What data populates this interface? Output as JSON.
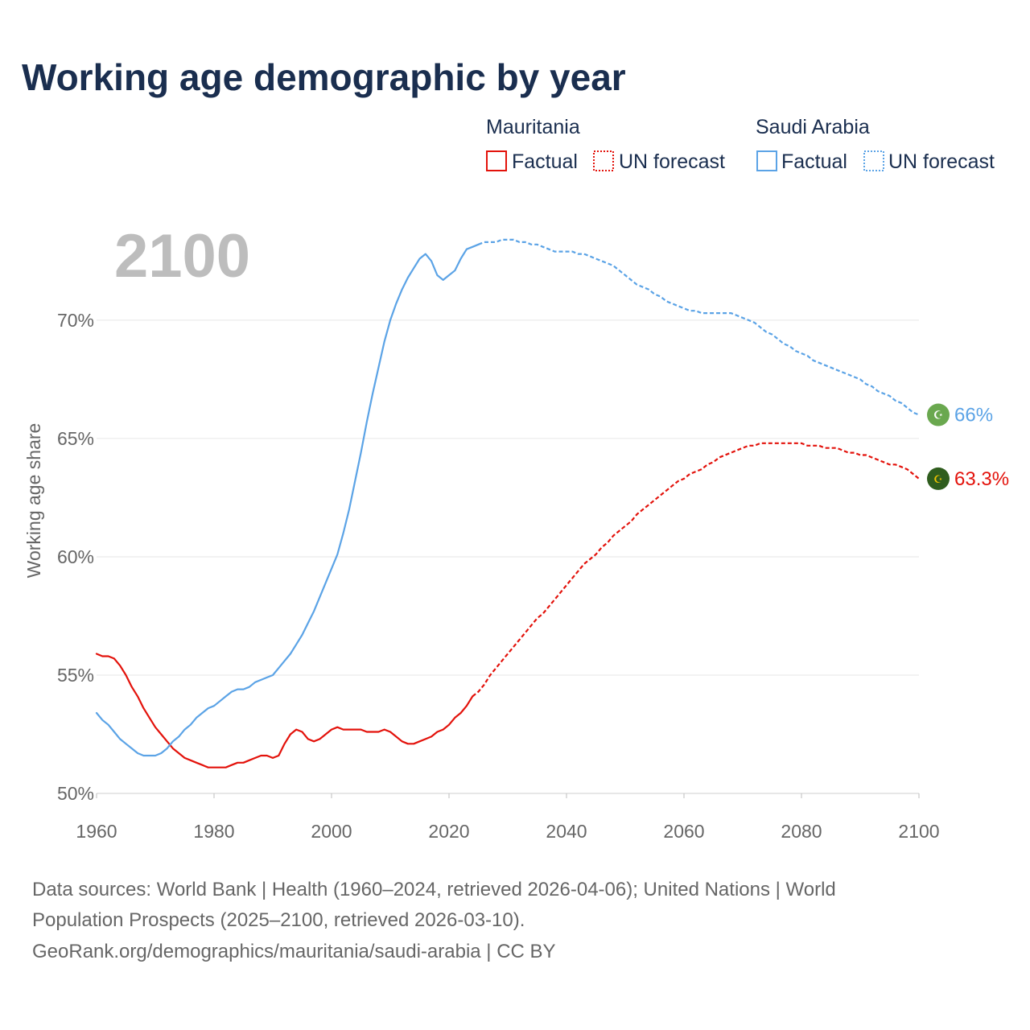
{
  "title": "Working age demographic by year",
  "year_watermark": "2100",
  "legend": {
    "groups": [
      {
        "name": "Mauritania",
        "color": "#e3120b",
        "items": [
          {
            "label": "Factual",
            "style": "solid"
          },
          {
            "label": "UN forecast",
            "style": "dotted"
          }
        ]
      },
      {
        "name": "Saudi Arabia",
        "color": "#5ba3e6",
        "items": [
          {
            "label": "Factual",
            "style": "solid"
          },
          {
            "label": "UN forecast",
            "style": "dotted"
          }
        ]
      }
    ]
  },
  "end_labels": [
    {
      "series": "Saudi Arabia",
      "text": "66%",
      "flag_icon": "saudi-arabia-flag-icon",
      "flag_color": "#6aa84f",
      "color": "#5ba3e6"
    },
    {
      "series": "Mauritania",
      "text": "63.3%",
      "flag_icon": "mauritania-flag-icon",
      "flag_color": "#2f5d1e",
      "color": "#e3120b"
    }
  ],
  "footer": {
    "line1": "Data sources: World Bank | Health (1960–2024, retrieved 2026-04-06); United Nations | World",
    "line2": "Population Prospects (2025–2100, retrieved 2026-03-10).",
    "line3": "GeoRank.org/demographics/mauritania/saudi-arabia | CC BY"
  },
  "chart_data": {
    "type": "line",
    "title": "Working age demographic by year",
    "xlabel": "",
    "ylabel": "Working age share",
    "xlim": [
      1960,
      2100
    ],
    "ylim": [
      50,
      73.5
    ],
    "x_ticks": [
      1960,
      1980,
      2000,
      2020,
      2040,
      2060,
      2080,
      2100
    ],
    "x_tick_labels": [
      "1960",
      "1980",
      "2000",
      "2020",
      "2040",
      "2060",
      "2080",
      "2100"
    ],
    "y_ticks": [
      50,
      55,
      60,
      65,
      70
    ],
    "y_tick_labels": [
      "50%",
      "55%",
      "60%",
      "65%",
      "70%"
    ],
    "grid": true,
    "series": [
      {
        "name": "Mauritania",
        "color": "#e3120b",
        "factual": [
          [
            1960,
            55.9
          ],
          [
            1961,
            55.8
          ],
          [
            1962,
            55.8
          ],
          [
            1963,
            55.7
          ],
          [
            1964,
            55.4
          ],
          [
            1965,
            55.0
          ],
          [
            1966,
            54.5
          ],
          [
            1967,
            54.1
          ],
          [
            1968,
            53.6
          ],
          [
            1969,
            53.2
          ],
          [
            1970,
            52.8
          ],
          [
            1971,
            52.5
          ],
          [
            1972,
            52.2
          ],
          [
            1973,
            51.9
          ],
          [
            1974,
            51.7
          ],
          [
            1975,
            51.5
          ],
          [
            1976,
            51.4
          ],
          [
            1977,
            51.3
          ],
          [
            1978,
            51.2
          ],
          [
            1979,
            51.1
          ],
          [
            1980,
            51.1
          ],
          [
            1981,
            51.1
          ],
          [
            1982,
            51.1
          ],
          [
            1983,
            51.2
          ],
          [
            1984,
            51.3
          ],
          [
            1985,
            51.3
          ],
          [
            1986,
            51.4
          ],
          [
            1987,
            51.5
          ],
          [
            1988,
            51.6
          ],
          [
            1989,
            51.6
          ],
          [
            1990,
            51.5
          ],
          [
            1991,
            51.6
          ],
          [
            1992,
            52.1
          ],
          [
            1993,
            52.5
          ],
          [
            1994,
            52.7
          ],
          [
            1995,
            52.6
          ],
          [
            1996,
            52.3
          ],
          [
            1997,
            52.2
          ],
          [
            1998,
            52.3
          ],
          [
            1999,
            52.5
          ],
          [
            2000,
            52.7
          ],
          [
            2001,
            52.8
          ],
          [
            2002,
            52.7
          ],
          [
            2003,
            52.7
          ],
          [
            2004,
            52.7
          ],
          [
            2005,
            52.7
          ],
          [
            2006,
            52.6
          ],
          [
            2007,
            52.6
          ],
          [
            2008,
            52.6
          ],
          [
            2009,
            52.7
          ],
          [
            2010,
            52.6
          ],
          [
            2011,
            52.4
          ],
          [
            2012,
            52.2
          ],
          [
            2013,
            52.1
          ],
          [
            2014,
            52.1
          ],
          [
            2015,
            52.2
          ],
          [
            2016,
            52.3
          ],
          [
            2017,
            52.4
          ],
          [
            2018,
            52.6
          ],
          [
            2019,
            52.7
          ],
          [
            2020,
            52.9
          ],
          [
            2021,
            53.2
          ],
          [
            2022,
            53.4
          ],
          [
            2023,
            53.7
          ],
          [
            2024,
            54.1
          ]
        ],
        "forecast": [
          [
            2024,
            54.1
          ],
          [
            2025,
            54.3
          ],
          [
            2026,
            54.6
          ],
          [
            2027,
            55.0
          ],
          [
            2028,
            55.3
          ],
          [
            2029,
            55.6
          ],
          [
            2030,
            55.9
          ],
          [
            2031,
            56.2
          ],
          [
            2032,
            56.5
          ],
          [
            2033,
            56.8
          ],
          [
            2034,
            57.1
          ],
          [
            2035,
            57.4
          ],
          [
            2036,
            57.6
          ],
          [
            2037,
            57.9
          ],
          [
            2038,
            58.2
          ],
          [
            2039,
            58.5
          ],
          [
            2040,
            58.8
          ],
          [
            2041,
            59.1
          ],
          [
            2042,
            59.4
          ],
          [
            2043,
            59.7
          ],
          [
            2044,
            59.9
          ],
          [
            2045,
            60.1
          ],
          [
            2046,
            60.4
          ],
          [
            2047,
            60.6
          ],
          [
            2048,
            60.9
          ],
          [
            2049,
            61.1
          ],
          [
            2050,
            61.3
          ],
          [
            2051,
            61.5
          ],
          [
            2052,
            61.8
          ],
          [
            2053,
            62.0
          ],
          [
            2054,
            62.2
          ],
          [
            2055,
            62.4
          ],
          [
            2056,
            62.6
          ],
          [
            2057,
            62.8
          ],
          [
            2058,
            63.0
          ],
          [
            2059,
            63.2
          ],
          [
            2060,
            63.3
          ],
          [
            2061,
            63.5
          ],
          [
            2062,
            63.6
          ],
          [
            2063,
            63.7
          ],
          [
            2064,
            63.9
          ],
          [
            2065,
            64.0
          ],
          [
            2066,
            64.2
          ],
          [
            2067,
            64.3
          ],
          [
            2068,
            64.4
          ],
          [
            2069,
            64.5
          ],
          [
            2070,
            64.6
          ],
          [
            2071,
            64.7
          ],
          [
            2072,
            64.7
          ],
          [
            2073,
            64.8
          ],
          [
            2074,
            64.8
          ],
          [
            2075,
            64.8
          ],
          [
            2076,
            64.8
          ],
          [
            2077,
            64.8
          ],
          [
            2078,
            64.8
          ],
          [
            2079,
            64.8
          ],
          [
            2080,
            64.8
          ],
          [
            2081,
            64.7
          ],
          [
            2082,
            64.7
          ],
          [
            2083,
            64.7
          ],
          [
            2084,
            64.6
          ],
          [
            2085,
            64.6
          ],
          [
            2086,
            64.6
          ],
          [
            2087,
            64.5
          ],
          [
            2088,
            64.4
          ],
          [
            2089,
            64.4
          ],
          [
            2090,
            64.3
          ],
          [
            2091,
            64.3
          ],
          [
            2092,
            64.2
          ],
          [
            2093,
            64.1
          ],
          [
            2094,
            64.0
          ],
          [
            2095,
            63.9
          ],
          [
            2096,
            63.9
          ],
          [
            2097,
            63.8
          ],
          [
            2098,
            63.7
          ],
          [
            2099,
            63.5
          ],
          [
            2100,
            63.3
          ]
        ]
      },
      {
        "name": "Saudi Arabia",
        "color": "#5ba3e6",
        "factual": [
          [
            1960,
            53.4
          ],
          [
            1961,
            53.1
          ],
          [
            1962,
            52.9
          ],
          [
            1963,
            52.6
          ],
          [
            1964,
            52.3
          ],
          [
            1965,
            52.1
          ],
          [
            1966,
            51.9
          ],
          [
            1967,
            51.7
          ],
          [
            1968,
            51.6
          ],
          [
            1969,
            51.6
          ],
          [
            1970,
            51.6
          ],
          [
            1971,
            51.7
          ],
          [
            1972,
            51.9
          ],
          [
            1973,
            52.2
          ],
          [
            1974,
            52.4
          ],
          [
            1975,
            52.7
          ],
          [
            1976,
            52.9
          ],
          [
            1977,
            53.2
          ],
          [
            1978,
            53.4
          ],
          [
            1979,
            53.6
          ],
          [
            1980,
            53.7
          ],
          [
            1981,
            53.9
          ],
          [
            1982,
            54.1
          ],
          [
            1983,
            54.3
          ],
          [
            1984,
            54.4
          ],
          [
            1985,
            54.4
          ],
          [
            1986,
            54.5
          ],
          [
            1987,
            54.7
          ],
          [
            1988,
            54.8
          ],
          [
            1989,
            54.9
          ],
          [
            1990,
            55.0
          ],
          [
            1991,
            55.3
          ],
          [
            1992,
            55.6
          ],
          [
            1993,
            55.9
          ],
          [
            1994,
            56.3
          ],
          [
            1995,
            56.7
          ],
          [
            1996,
            57.2
          ],
          [
            1997,
            57.7
          ],
          [
            1998,
            58.3
          ],
          [
            1999,
            58.9
          ],
          [
            2000,
            59.5
          ],
          [
            2001,
            60.1
          ],
          [
            2002,
            61.0
          ],
          [
            2003,
            62.0
          ],
          [
            2004,
            63.2
          ],
          [
            2005,
            64.4
          ],
          [
            2006,
            65.7
          ],
          [
            2007,
            66.9
          ],
          [
            2008,
            68.0
          ],
          [
            2009,
            69.1
          ],
          [
            2010,
            70.0
          ],
          [
            2011,
            70.7
          ],
          [
            2012,
            71.3
          ],
          [
            2013,
            71.8
          ],
          [
            2014,
            72.2
          ],
          [
            2015,
            72.6
          ],
          [
            2016,
            72.8
          ],
          [
            2017,
            72.5
          ],
          [
            2018,
            71.9
          ],
          [
            2019,
            71.7
          ],
          [
            2020,
            71.9
          ],
          [
            2021,
            72.1
          ],
          [
            2022,
            72.6
          ],
          [
            2023,
            73.0
          ],
          [
            2024,
            73.1
          ],
          [
            2025,
            73.2
          ]
        ],
        "forecast": [
          [
            2025,
            73.2
          ],
          [
            2026,
            73.3
          ],
          [
            2027,
            73.3
          ],
          [
            2028,
            73.3
          ],
          [
            2029,
            73.4
          ],
          [
            2030,
            73.4
          ],
          [
            2031,
            73.4
          ],
          [
            2032,
            73.3
          ],
          [
            2033,
            73.3
          ],
          [
            2034,
            73.2
          ],
          [
            2035,
            73.2
          ],
          [
            2036,
            73.1
          ],
          [
            2037,
            73.0
          ],
          [
            2038,
            72.9
          ],
          [
            2039,
            72.9
          ],
          [
            2040,
            72.9
          ],
          [
            2041,
            72.9
          ],
          [
            2042,
            72.8
          ],
          [
            2043,
            72.8
          ],
          [
            2044,
            72.7
          ],
          [
            2045,
            72.6
          ],
          [
            2046,
            72.5
          ],
          [
            2047,
            72.4
          ],
          [
            2048,
            72.3
          ],
          [
            2049,
            72.1
          ],
          [
            2050,
            71.9
          ],
          [
            2051,
            71.7
          ],
          [
            2052,
            71.5
          ],
          [
            2053,
            71.4
          ],
          [
            2054,
            71.3
          ],
          [
            2055,
            71.1
          ],
          [
            2056,
            71.0
          ],
          [
            2057,
            70.8
          ],
          [
            2058,
            70.7
          ],
          [
            2059,
            70.6
          ],
          [
            2060,
            70.5
          ],
          [
            2061,
            70.4
          ],
          [
            2062,
            70.4
          ],
          [
            2063,
            70.3
          ],
          [
            2064,
            70.3
          ],
          [
            2065,
            70.3
          ],
          [
            2066,
            70.3
          ],
          [
            2067,
            70.3
          ],
          [
            2068,
            70.3
          ],
          [
            2069,
            70.2
          ],
          [
            2070,
            70.1
          ],
          [
            2071,
            70.0
          ],
          [
            2072,
            69.9
          ],
          [
            2073,
            69.7
          ],
          [
            2074,
            69.5
          ],
          [
            2075,
            69.4
          ],
          [
            2076,
            69.2
          ],
          [
            2077,
            69.0
          ],
          [
            2078,
            68.9
          ],
          [
            2079,
            68.7
          ],
          [
            2080,
            68.6
          ],
          [
            2081,
            68.5
          ],
          [
            2082,
            68.3
          ],
          [
            2083,
            68.2
          ],
          [
            2084,
            68.1
          ],
          [
            2085,
            68.0
          ],
          [
            2086,
            67.9
          ],
          [
            2087,
            67.8
          ],
          [
            2088,
            67.7
          ],
          [
            2089,
            67.6
          ],
          [
            2090,
            67.5
          ],
          [
            2091,
            67.3
          ],
          [
            2092,
            67.2
          ],
          [
            2093,
            67.0
          ],
          [
            2094,
            66.9
          ],
          [
            2095,
            66.8
          ],
          [
            2096,
            66.6
          ],
          [
            2097,
            66.5
          ],
          [
            2098,
            66.3
          ],
          [
            2099,
            66.1
          ],
          [
            2100,
            66.0
          ]
        ]
      }
    ]
  }
}
